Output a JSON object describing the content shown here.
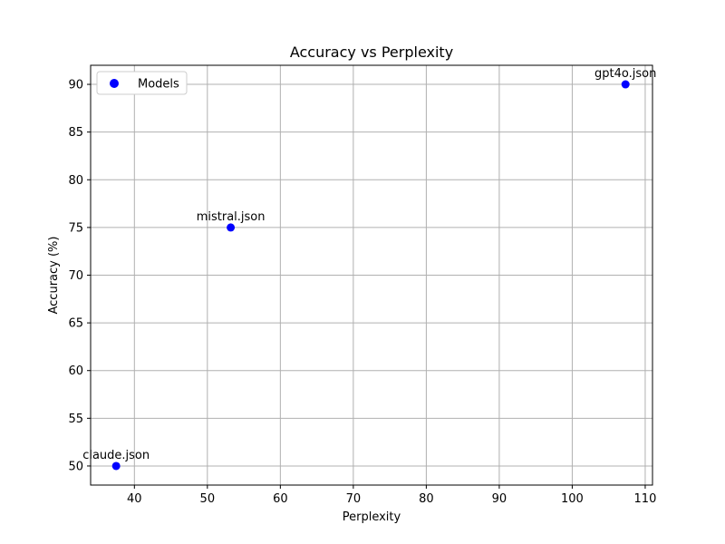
{
  "chart_data": {
    "type": "scatter",
    "title": "Accuracy vs Perplexity",
    "xlabel": "Perplexity",
    "ylabel": "Accuracy (%)",
    "xlim": [
      34,
      111
    ],
    "ylim": [
      48,
      92
    ],
    "xticks": [
      40,
      50,
      60,
      70,
      80,
      90,
      100,
      110
    ],
    "yticks": [
      50,
      55,
      60,
      65,
      70,
      75,
      80,
      85,
      90
    ],
    "grid": true,
    "legend_position": "top-left",
    "series": [
      {
        "name": "Models",
        "color": "#0000ff",
        "points": [
          {
            "label": "claude.json",
            "x": 37.5,
            "y": 50
          },
          {
            "label": "mistral.json",
            "x": 53.2,
            "y": 75
          },
          {
            "label": "gpt4o.json",
            "x": 107.3,
            "y": 90
          }
        ]
      }
    ]
  }
}
